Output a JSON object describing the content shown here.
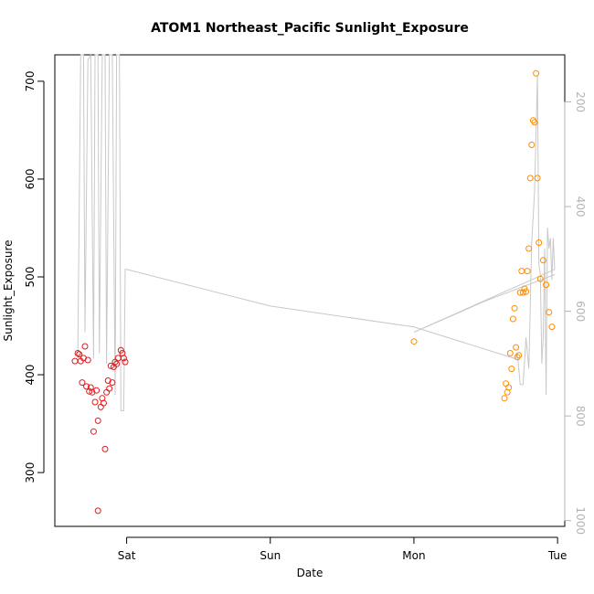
{
  "chart_data": {
    "type": "scatter",
    "title": "ATOM1 Northeast_Pacific Sunlight_Exposure",
    "xlabel": "Date",
    "ylabel": "Sunlight_Exposure",
    "x_ticks": [
      {
        "x": 1.0,
        "label": "Sat"
      },
      {
        "x": 2.0,
        "label": "Sun"
      },
      {
        "x": 3.0,
        "label": "Mon"
      },
      {
        "x": 4.0,
        "label": "Tue"
      }
    ],
    "xlim": [
      0.5,
      4.05
    ],
    "ylim": [
      245,
      727
    ],
    "y_ticks": [
      300,
      400,
      500,
      600,
      700
    ],
    "y2_ticks": [
      200,
      400,
      600,
      800,
      1000
    ],
    "y2lim": [
      1011,
      110
    ],
    "grid": false,
    "colors": {
      "series1": "#e31a1c",
      "series2": "#ff8c00",
      "trace": "#c8c8c8"
    },
    "series": [
      {
        "color": "#e31a1c",
        "points": [
          [
            0.64,
            414
          ],
          [
            0.66,
            422
          ],
          [
            0.67,
            421
          ],
          [
            0.68,
            414
          ],
          [
            0.69,
            392
          ],
          [
            0.7,
            417
          ],
          [
            0.71,
            429
          ],
          [
            0.72,
            388
          ],
          [
            0.73,
            415
          ],
          [
            0.74,
            383
          ],
          [
            0.75,
            387
          ],
          [
            0.76,
            382
          ],
          [
            0.77,
            342
          ],
          [
            0.78,
            372
          ],
          [
            0.79,
            384
          ],
          [
            0.8,
            353
          ],
          [
            0.8,
            261
          ],
          [
            0.82,
            367
          ],
          [
            0.83,
            376
          ],
          [
            0.84,
            371
          ],
          [
            0.85,
            324
          ],
          [
            0.86,
            382
          ],
          [
            0.87,
            394
          ],
          [
            0.88,
            386
          ],
          [
            0.89,
            409
          ],
          [
            0.9,
            392
          ],
          [
            0.91,
            408
          ],
          [
            0.92,
            413
          ],
          [
            0.93,
            411
          ],
          [
            0.94,
            417
          ],
          [
            0.96,
            425
          ],
          [
            0.97,
            422
          ],
          [
            0.98,
            417
          ],
          [
            0.99,
            413
          ]
        ]
      },
      {
        "color": "#ff8c00",
        "points": [
          [
            3.0,
            434
          ],
          [
            3.63,
            376
          ],
          [
            3.64,
            391
          ],
          [
            3.65,
            382
          ],
          [
            3.66,
            387
          ],
          [
            3.67,
            422
          ],
          [
            3.68,
            406
          ],
          [
            3.69,
            457
          ],
          [
            3.7,
            468
          ],
          [
            3.71,
            428
          ],
          [
            3.72,
            418
          ],
          [
            3.73,
            420
          ],
          [
            3.74,
            484
          ],
          [
            3.75,
            506
          ],
          [
            3.76,
            484
          ],
          [
            3.77,
            488
          ],
          [
            3.78,
            485
          ],
          [
            3.79,
            506
          ],
          [
            3.8,
            529
          ],
          [
            3.81,
            601
          ],
          [
            3.82,
            635
          ],
          [
            3.83,
            660
          ],
          [
            3.84,
            658
          ],
          [
            3.85,
            708
          ],
          [
            3.86,
            601
          ],
          [
            3.87,
            535
          ],
          [
            3.88,
            498
          ],
          [
            3.9,
            517
          ],
          [
            3.92,
            492
          ],
          [
            3.94,
            464
          ],
          [
            3.96,
            449
          ]
        ]
      }
    ],
    "trace": {
      "axis": "right",
      "points": [
        [
          0.66,
          690
        ],
        [
          0.68,
          110
        ],
        [
          0.7,
          110
        ],
        [
          0.71,
          640
        ],
        [
          0.73,
          120
        ],
        [
          0.75,
          110
        ],
        [
          0.77,
          690
        ],
        [
          0.78,
          110
        ],
        [
          0.8,
          110
        ],
        [
          0.81,
          680
        ],
        [
          0.83,
          110
        ],
        [
          0.85,
          110
        ],
        [
          0.86,
          700
        ],
        [
          0.88,
          110
        ],
        [
          0.9,
          110
        ],
        [
          0.92,
          760
        ],
        [
          0.93,
          110
        ],
        [
          0.95,
          110
        ],
        [
          0.96,
          790
        ],
        [
          0.97,
          790
        ],
        [
          0.98,
          790
        ],
        [
          0.99,
          520
        ],
        [
          1.0,
          520
        ],
        [
          2.0,
          590
        ],
        [
          3.0,
          630
        ],
        [
          3.7,
          690
        ],
        [
          3.71,
          690
        ],
        [
          3.72,
          680
        ],
        [
          3.74,
          740
        ],
        [
          3.76,
          740
        ],
        [
          3.78,
          650
        ],
        [
          3.8,
          710
        ],
        [
          3.82,
          470
        ],
        [
          3.84,
          370
        ],
        [
          3.86,
          150
        ],
        [
          3.87,
          510
        ],
        [
          3.88,
          530
        ],
        [
          3.89,
          700
        ],
        [
          3.9,
          650
        ],
        [
          3.91,
          480
        ],
        [
          3.92,
          760
        ],
        [
          3.93,
          440
        ],
        [
          3.94,
          480
        ],
        [
          3.95,
          460
        ],
        [
          3.96,
          540
        ],
        [
          3.97,
          460
        ],
        [
          3.98,
          520
        ],
        [
          3.0,
          640
        ],
        [
          3.5,
          580
        ],
        [
          3.98,
          530
        ]
      ]
    }
  }
}
